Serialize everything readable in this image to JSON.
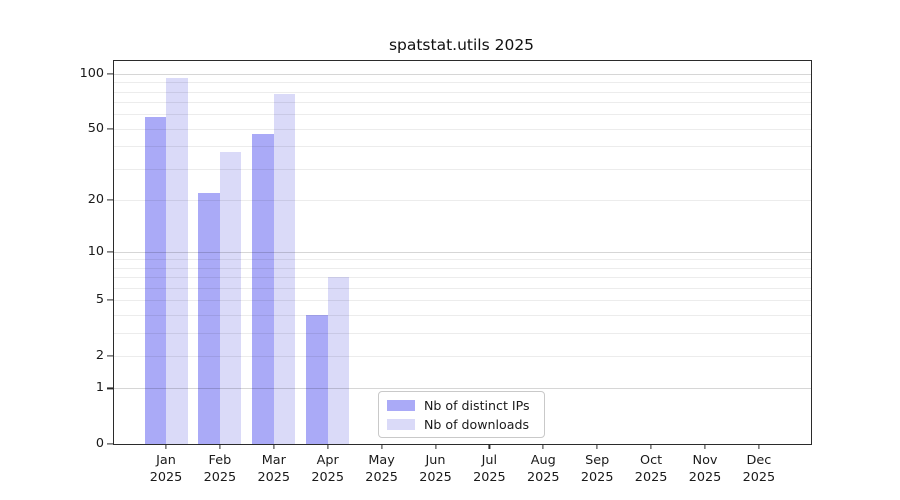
{
  "figure": {
    "background": "#ffffff"
  },
  "chart_data": {
    "type": "bar",
    "title": "spatstat.utils 2025",
    "xlabel": "",
    "ylabel": "",
    "yscale": "log1p",
    "ylim": [
      0,
      118
    ],
    "grid": true,
    "legend_position": "lower center",
    "categories": [
      {
        "month": "Jan",
        "year": "2025"
      },
      {
        "month": "Feb",
        "year": "2025"
      },
      {
        "month": "Mar",
        "year": "2025"
      },
      {
        "month": "Apr",
        "year": "2025"
      },
      {
        "month": "May",
        "year": "2025"
      },
      {
        "month": "Jun",
        "year": "2025"
      },
      {
        "month": "Jul",
        "year": "2025"
      },
      {
        "month": "Aug",
        "year": "2025"
      },
      {
        "month": "Sep",
        "year": "2025"
      },
      {
        "month": "Oct",
        "year": "2025"
      },
      {
        "month": "Nov",
        "year": "2025"
      },
      {
        "month": "Dec",
        "year": "2025"
      }
    ],
    "series": [
      {
        "name": "Nb of distinct IPs",
        "color": "#aaaaf7",
        "values": [
          58,
          22,
          47,
          4,
          0,
          0,
          0,
          0,
          0,
          0,
          0,
          0
        ]
      },
      {
        "name": "Nb of downloads",
        "color": "#dadaf8",
        "values": [
          95,
          37,
          78,
          7,
          0,
          0,
          0,
          0,
          0,
          0,
          0,
          0
        ]
      }
    ],
    "ytick_values": [
      0,
      1,
      2,
      5,
      10,
      20,
      50,
      100
    ],
    "gridlines": {
      "major": [
        1,
        10,
        100
      ],
      "minor": [
        2,
        3,
        4,
        5,
        6,
        7,
        8,
        9,
        20,
        30,
        40,
        50,
        60,
        70,
        80,
        90
      ]
    }
  }
}
